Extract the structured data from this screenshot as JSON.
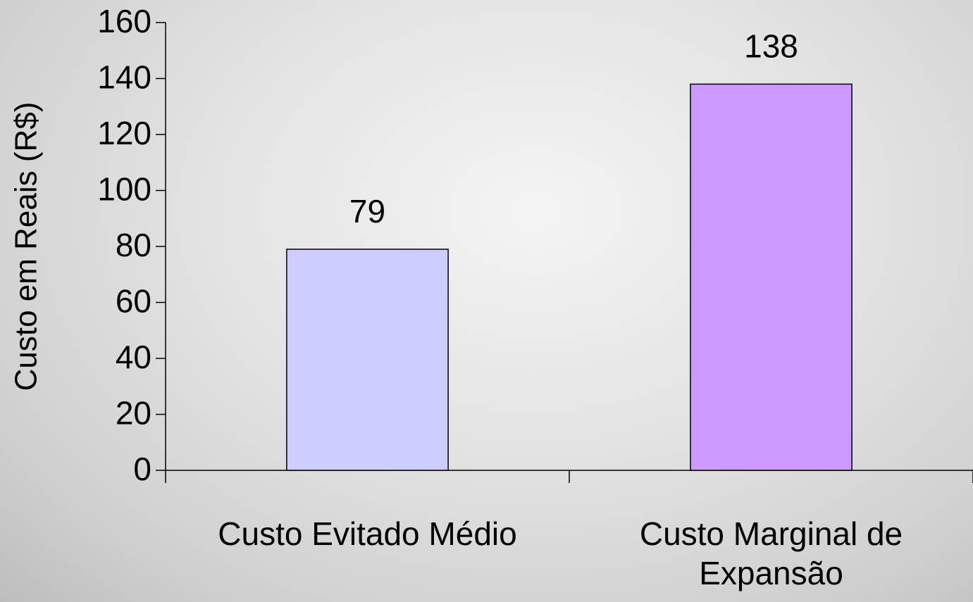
{
  "chart_data": {
    "type": "bar",
    "y_label": "Custo em Reais (R$)",
    "categories": [
      "Custo Evitado Médio",
      "Custo Marginal de Expansão"
    ],
    "values": [
      79,
      138
    ],
    "colors": [
      "#ccccff",
      "#cc99ff"
    ],
    "ylim": [
      0,
      160
    ],
    "yticks": [
      0,
      20,
      40,
      60,
      80,
      100,
      120,
      140,
      160
    ]
  }
}
